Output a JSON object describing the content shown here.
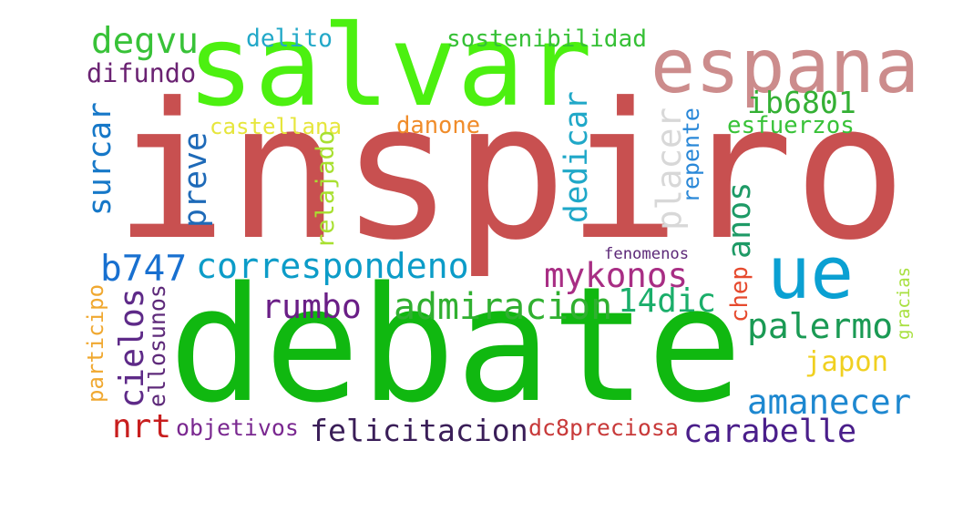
{
  "words": [
    {
      "text": "inspiro",
      "color": "#c85050"
    },
    {
      "text": "debate",
      "color": "#10b810"
    },
    {
      "text": "salvar",
      "color": "#4cf010"
    },
    {
      "text": "espana",
      "color": "#cc8c8c"
    },
    {
      "text": "ue",
      "color": "#0aa0d2"
    },
    {
      "text": "degvu",
      "color": "#38c238"
    },
    {
      "text": "delito",
      "color": "#22a8c8"
    },
    {
      "text": "sostenibilidad",
      "color": "#36c036"
    },
    {
      "text": "difundo",
      "color": "#6a2272"
    },
    {
      "text": "ib6801",
      "color": "#34b034"
    },
    {
      "text": "castellana",
      "color": "#e6e63c"
    },
    {
      "text": "danone",
      "color": "#f08c2a"
    },
    {
      "text": "esfuerzos",
      "color": "#38c238"
    },
    {
      "text": "surcar",
      "color": "#1678c8"
    },
    {
      "text": "preve",
      "color": "#1e6ab8"
    },
    {
      "text": "relajado",
      "color": "#a8e030"
    },
    {
      "text": "dedicar",
      "color": "#20a8c8"
    },
    {
      "text": "placer",
      "color": "#d8d8d8"
    },
    {
      "text": "repente",
      "color": "#2a88d8"
    },
    {
      "text": "anos",
      "color": "#1e9a66"
    },
    {
      "text": "b747",
      "color": "#1870d0"
    },
    {
      "text": "correspondeno",
      "color": "#0c9cc8"
    },
    {
      "text": "mykonos",
      "color": "#a82e84"
    },
    {
      "text": "fenomenos",
      "color": "#5c2878"
    },
    {
      "text": "chep",
      "color": "#e64a2e"
    },
    {
      "text": "gracias",
      "color": "#a8e040"
    },
    {
      "text": "participo",
      "color": "#f0a830"
    },
    {
      "text": "ellosunos",
      "color": "#5e2a7a"
    },
    {
      "text": "cielos",
      "color": "#5e2a88"
    },
    {
      "text": "rumbo",
      "color": "#6a1e86"
    },
    {
      "text": "admiracion",
      "color": "#30b030"
    },
    {
      "text": "14dic",
      "color": "#1aae6a"
    },
    {
      "text": "palermo",
      "color": "#1a9a54"
    },
    {
      "text": "japon",
      "color": "#f0d020"
    },
    {
      "text": "amanecer",
      "color": "#1e88d0"
    },
    {
      "text": "nrt",
      "color": "#c81e1e"
    },
    {
      "text": "objetivos",
      "color": "#7a2890"
    },
    {
      "text": "felicitacion",
      "color": "#3a1e58"
    },
    {
      "text": "dc8preciosa",
      "color": "#c83a3a"
    },
    {
      "text": "carabelle",
      "color": "#4a1e8a"
    }
  ]
}
